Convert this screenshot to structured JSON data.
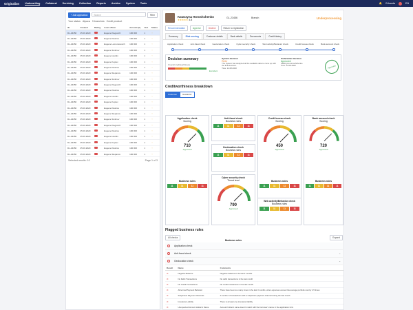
{
  "topbar": {
    "brand": "Originalion",
    "nav": [
      "Underwriting",
      "Collateral",
      "Servicing",
      "Collection",
      "Reports",
      "Archive",
      "System",
      "Tools"
    ],
    "active": 0,
    "user": "Eduarda",
    "lang": "EN"
  },
  "left": {
    "add_label": "+ Add application",
    "search_placeholder": "Search",
    "filter_label": "Filter",
    "filters": [
      "Your status",
      "Alpaca",
      "9 branches",
      "Credit product"
    ],
    "columns": [
      "ID",
      "Created",
      "Rating",
      "Loan officer",
      "Amount (€)",
      "Vert",
      "Status"
    ],
    "rows": [
      [
        "DL-23456",
        "25.03.2020",
        "",
        "Eugene Klegovich",
        "100 000",
        "1"
      ],
      [
        "DL-23456",
        "25.03.2020",
        "",
        "Eugene Kleshov",
        "100 000",
        "1"
      ],
      [
        "DL-23456",
        "25.03.2020",
        "",
        "Eugene Lomonosovich",
        "100 000",
        "1"
      ],
      [
        "DL-23456",
        "25.03.2020",
        "",
        "Eugene Smirnov",
        "100 000",
        "1"
      ],
      [
        "DL-23456",
        "25.03.2020",
        "",
        "Eugene Ivashin",
        "100 000",
        "1"
      ],
      [
        "DL-23456",
        "25.03.2020",
        "",
        "Eugene Koptev",
        "100 000",
        "1"
      ],
      [
        "DL-23456",
        "25.03.2020",
        "",
        "Eugene Kleshov",
        "100 000",
        "1"
      ],
      [
        "DL-23456",
        "25.03.2020",
        "",
        "Eugene Stepanov",
        "100 000",
        "1"
      ],
      [
        "DL-23456",
        "25.03.2020",
        "",
        "Eugene Smirnov",
        "100 000",
        "1"
      ],
      [
        "DL-23456",
        "25.03.2020",
        "",
        "Eugene Klegovich",
        "100 000",
        "1"
      ],
      [
        "DL-23456",
        "25.03.2020",
        "",
        "Eugene Kleshov",
        "100 000",
        "1"
      ],
      [
        "DL-23456",
        "25.03.2020",
        "",
        "Eugene Ivashin",
        "100 000",
        "1"
      ],
      [
        "DL-23456",
        "25.03.2020",
        "",
        "Eugene Koptev",
        "100 000",
        "1"
      ],
      [
        "DL-23456",
        "25.03.2020",
        "",
        "Eugene Kleshov",
        "100 000",
        "1"
      ],
      [
        "DL-23456",
        "25.03.2020",
        "",
        "Eugene Stepanov",
        "100 000",
        "1"
      ],
      [
        "DL-23456",
        "25.03.2020",
        "",
        "Eugene Smirnov",
        "100 000",
        "1"
      ],
      [
        "DL-23456",
        "25.03.2020",
        "",
        "Eugene Klegovich",
        "100 000",
        "1"
      ],
      [
        "DL-23456",
        "25.03.2020",
        "",
        "Eugene Kleshov",
        "100 000",
        "1"
      ],
      [
        "DL-23456",
        "25.03.2020",
        "",
        "Eugene Ivashin",
        "100 000",
        "1"
      ],
      [
        "DL-23456",
        "25.03.2020",
        "",
        "Eugene Koptev",
        "100 000",
        "1"
      ],
      [
        "DL-23456",
        "25.03.2020",
        "",
        "Eugene Kleshov",
        "100 000",
        "1"
      ],
      [
        "DL-23456",
        "25.03.2020",
        "",
        "Eugene Stepanov",
        "100 000",
        "1"
      ]
    ],
    "pager": "Selected results: 10",
    "page": "Page 1 of 3"
  },
  "main": {
    "name": "Katarzyna Horoshchenko",
    "stars": "★★★★★",
    "rating": "4.8",
    "id": "GL-23456",
    "branch": "Branch",
    "pending": "Underprocessing",
    "actions": [
      "Recommendation",
      "Approve",
      "Decline",
      "Return to registration"
    ],
    "tabs": [
      "Summary",
      "Risk scoring",
      "Customer details",
      "Bank details",
      "Documents",
      "Credit history"
    ],
    "active_tab": 1,
    "steps": [
      "Application check",
      "Anti-fraud check",
      "Geolocation check",
      "Cyber security check",
      "Web activity/Behavior check",
      "Credit bureau check",
      "Bank account check"
    ],
    "decision": {
      "title": "Decision summary",
      "overall": "Overall creditworthiness",
      "level": "Excellent",
      "system": "System decision",
      "sys_val": "Refer",
      "sys_note": "The System has analyzed all the available data to come up with the final decision.",
      "underwriter": "Underwriter decision",
      "uw_val": "Approved",
      "uw_name": "Katarzyna Horoshchenko",
      "time": "Time: 12.08.2020",
      "stamp": "Approved"
    },
    "breakdown": "Creditworthiness breakdown",
    "seg": [
      "Customer",
      "Guarantor"
    ],
    "cards": [
      {
        "t": "Application check",
        "s": "Scoring",
        "v": "710",
        "a": "Approved"
      },
      {
        "t": "Anti-fraud check",
        "s": "Business rules",
        "v": "",
        "a": ""
      },
      {
        "t": "Credit bureau check",
        "s": "Scoring",
        "v": "450",
        "a": "Approved"
      },
      {
        "t": "Bank account check",
        "s": "Scoring",
        "v": "720",
        "a": "Approved"
      },
      {
        "t": "Geolocation check",
        "s": "Business rules",
        "v": "",
        "a": ""
      },
      {
        "t": "Cyber security check",
        "s": "Threat level",
        "v": "790",
        "a": "Approved"
      },
      {
        "t": "Web activity/Behavior check",
        "s": "Business rules",
        "v": "",
        "a": ""
      }
    ],
    "rules_label": "Business rules",
    "flagged": "Flagged business rules",
    "flag_sel": "All checks",
    "accordion": [
      "Application check",
      "Anti-fraud check",
      "Geolocation check"
    ],
    "rule_cols": [
      "Result",
      "Name",
      "Comments"
    ],
    "rules": [
      [
        "Negative Balance",
        "Negative balance in the last 3 months"
      ],
      [
        "No Debit Transactions",
        "No debit transactions in the last month"
      ],
      [
        "No Credit Transactions",
        "No credit transactions in the last month"
      ],
      [
        "Abnormal Payment Behavior",
        "There have been too many times in the last 3 months, when expenses exceed the average portfolio cost by 2.5 times"
      ],
      [
        "Suspicious Payment Channels",
        "A number of transactions with a suspicious payment channel during the last month"
      ],
      [
        "Insurance Liability",
        "There is at least one insurance liability"
      ],
      [
        "Unexpected Account Holder's Name",
        "Account holder's name doesn't match with the borrower's name in the application form"
      ]
    ]
  }
}
